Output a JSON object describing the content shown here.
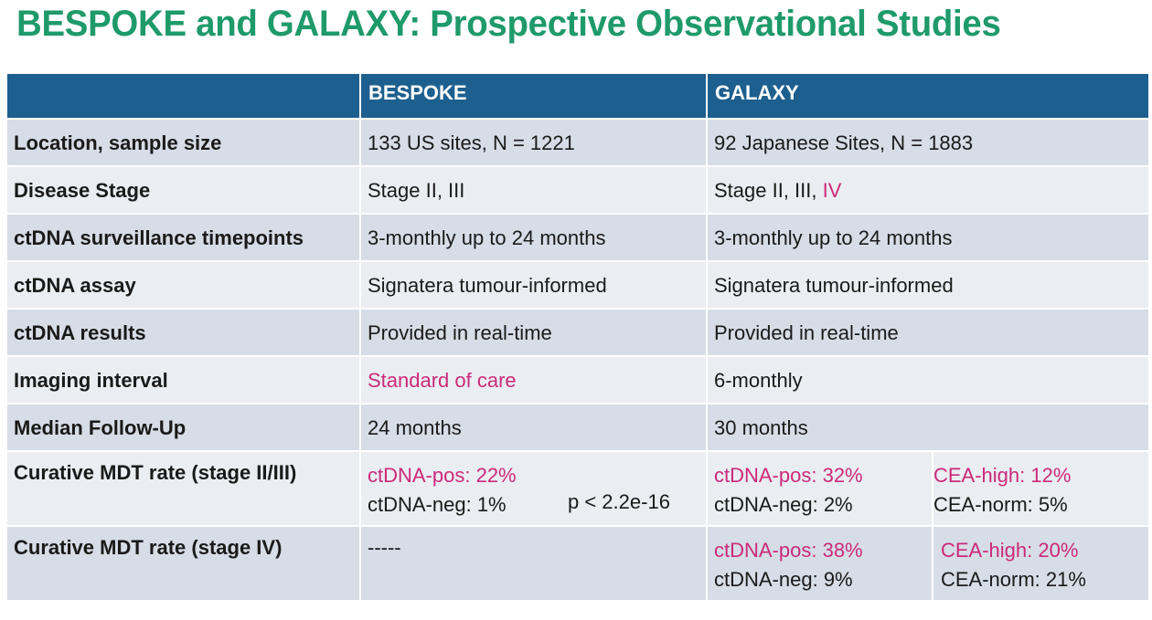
{
  "title": "BESPOKE and GALAXY: Prospective Observational Studies",
  "colors": {
    "title": "#1f9a6a",
    "header_bg": "#1d5f8e",
    "row_dark": "#d6dde6",
    "row_light": "#eaedf2",
    "highlight": "#cc2a79"
  },
  "header": {
    "col1": "",
    "col2": "BESPOKE",
    "col3": "GALAXY"
  },
  "rows": [
    {
      "label": "Location, sample size",
      "bespoke": "133 US sites, N = 1221",
      "galaxy": "92 Japanese Sites, N = 1883"
    },
    {
      "label": "Disease Stage",
      "bespoke": "Stage II, III",
      "galaxy_main": "Stage II, III, ",
      "galaxy_highlight": "IV"
    },
    {
      "label": "ctDNA surveillance timepoints",
      "bespoke": "3-monthly up to 24 months",
      "galaxy": "3-monthly up to 24 months"
    },
    {
      "label": "ctDNA assay",
      "bespoke": "Signatera tumour-informed",
      "galaxy": "Signatera tumour-informed"
    },
    {
      "label": "ctDNA results",
      "bespoke": "Provided in real-time",
      "galaxy": "Provided in real-time"
    },
    {
      "label": "Imaging interval",
      "bespoke": "Standard of care",
      "galaxy": "6-monthly"
    },
    {
      "label": "Median Follow-Up",
      "bespoke": "24 months",
      "galaxy": "30 months"
    },
    {
      "label": "Curative MDT rate (stage II/III)",
      "bespoke_pos": "ctDNA-pos: 22%",
      "bespoke_neg": "ctDNA-neg: 1%",
      "bespoke_p": "p < 2.2e-16",
      "galaxy_pos": "ctDNA-pos: 32%",
      "galaxy_neg": "ctDNA-neg: 2%",
      "galaxy_cea_high": "CEA-high: 12%",
      "galaxy_cea_norm": "CEA-norm: 5%"
    },
    {
      "label": "Curative MDT rate (stage IV)",
      "bespoke": "-----",
      "galaxy_pos": "ctDNA-pos: 38%",
      "galaxy_neg": "ctDNA-neg: 9%",
      "galaxy_cea_high": "CEA-high: 20%",
      "galaxy_cea_norm": "CEA-norm: 21%"
    }
  ]
}
